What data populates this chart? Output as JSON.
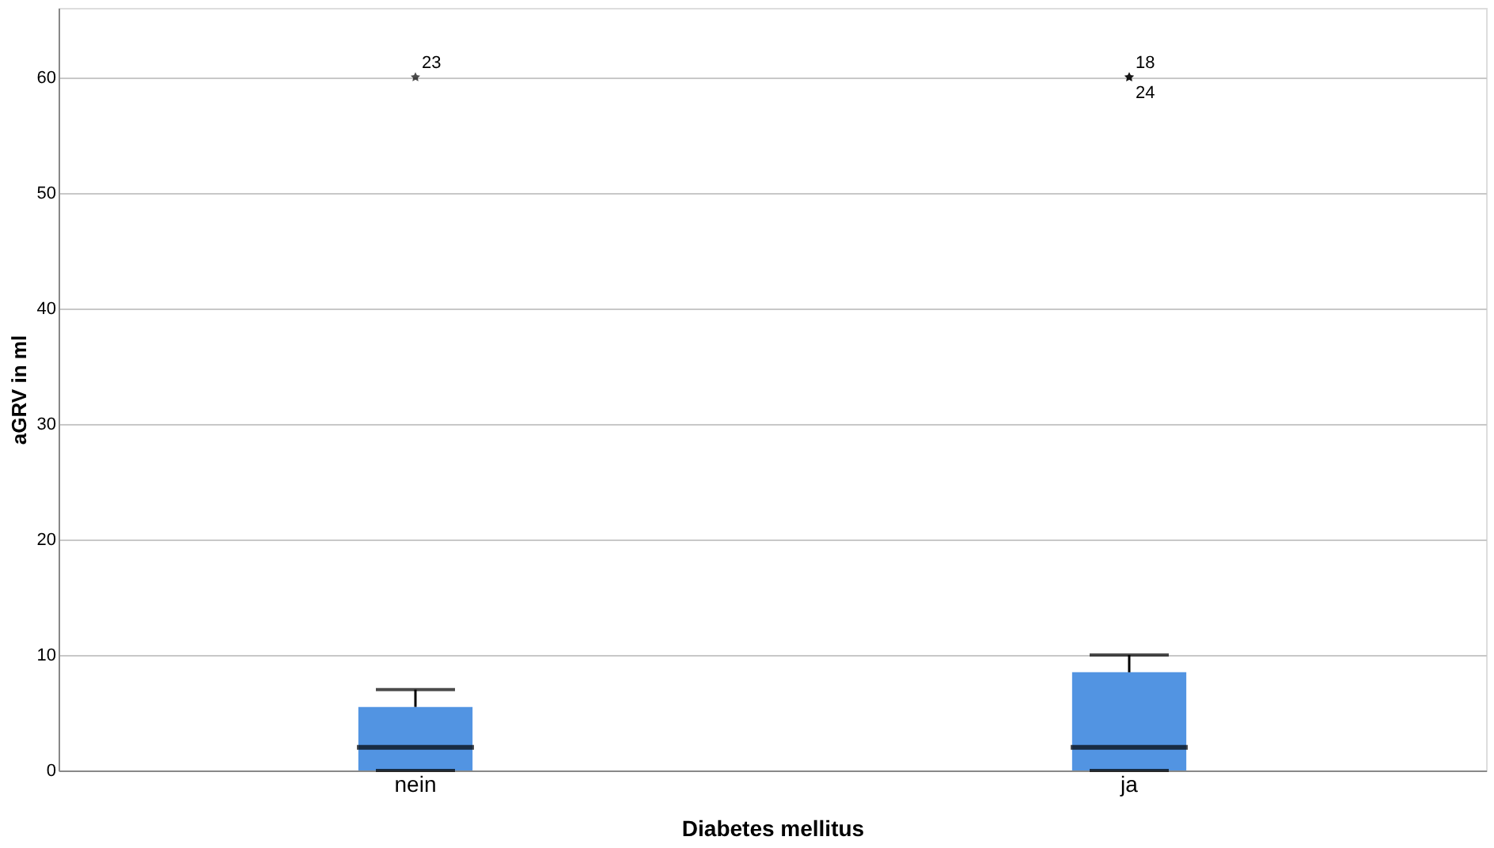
{
  "chart_data": {
    "type": "box",
    "xlabel": "Diabetes mellitus",
    "ylabel": "aGRV in ml",
    "categories": [
      "nein",
      "ja"
    ],
    "boxes": [
      {
        "low": 0,
        "q1": 0,
        "median": 2,
        "q3": 5.5,
        "high": 7,
        "outliers": [
          60
        ]
      },
      {
        "low": 0,
        "q1": 0,
        "median": 2,
        "q3": 8.5,
        "high": 10,
        "outliers": [
          60,
          60
        ]
      }
    ],
    "color": "#5294e2",
    "marker": "star",
    "ylim": [
      0,
      66
    ],
    "yticks": [
      0,
      10,
      20,
      30,
      40,
      50,
      60
    ],
    "grid": "y",
    "annotations": [
      "23",
      "18",
      "24"
    ]
  }
}
